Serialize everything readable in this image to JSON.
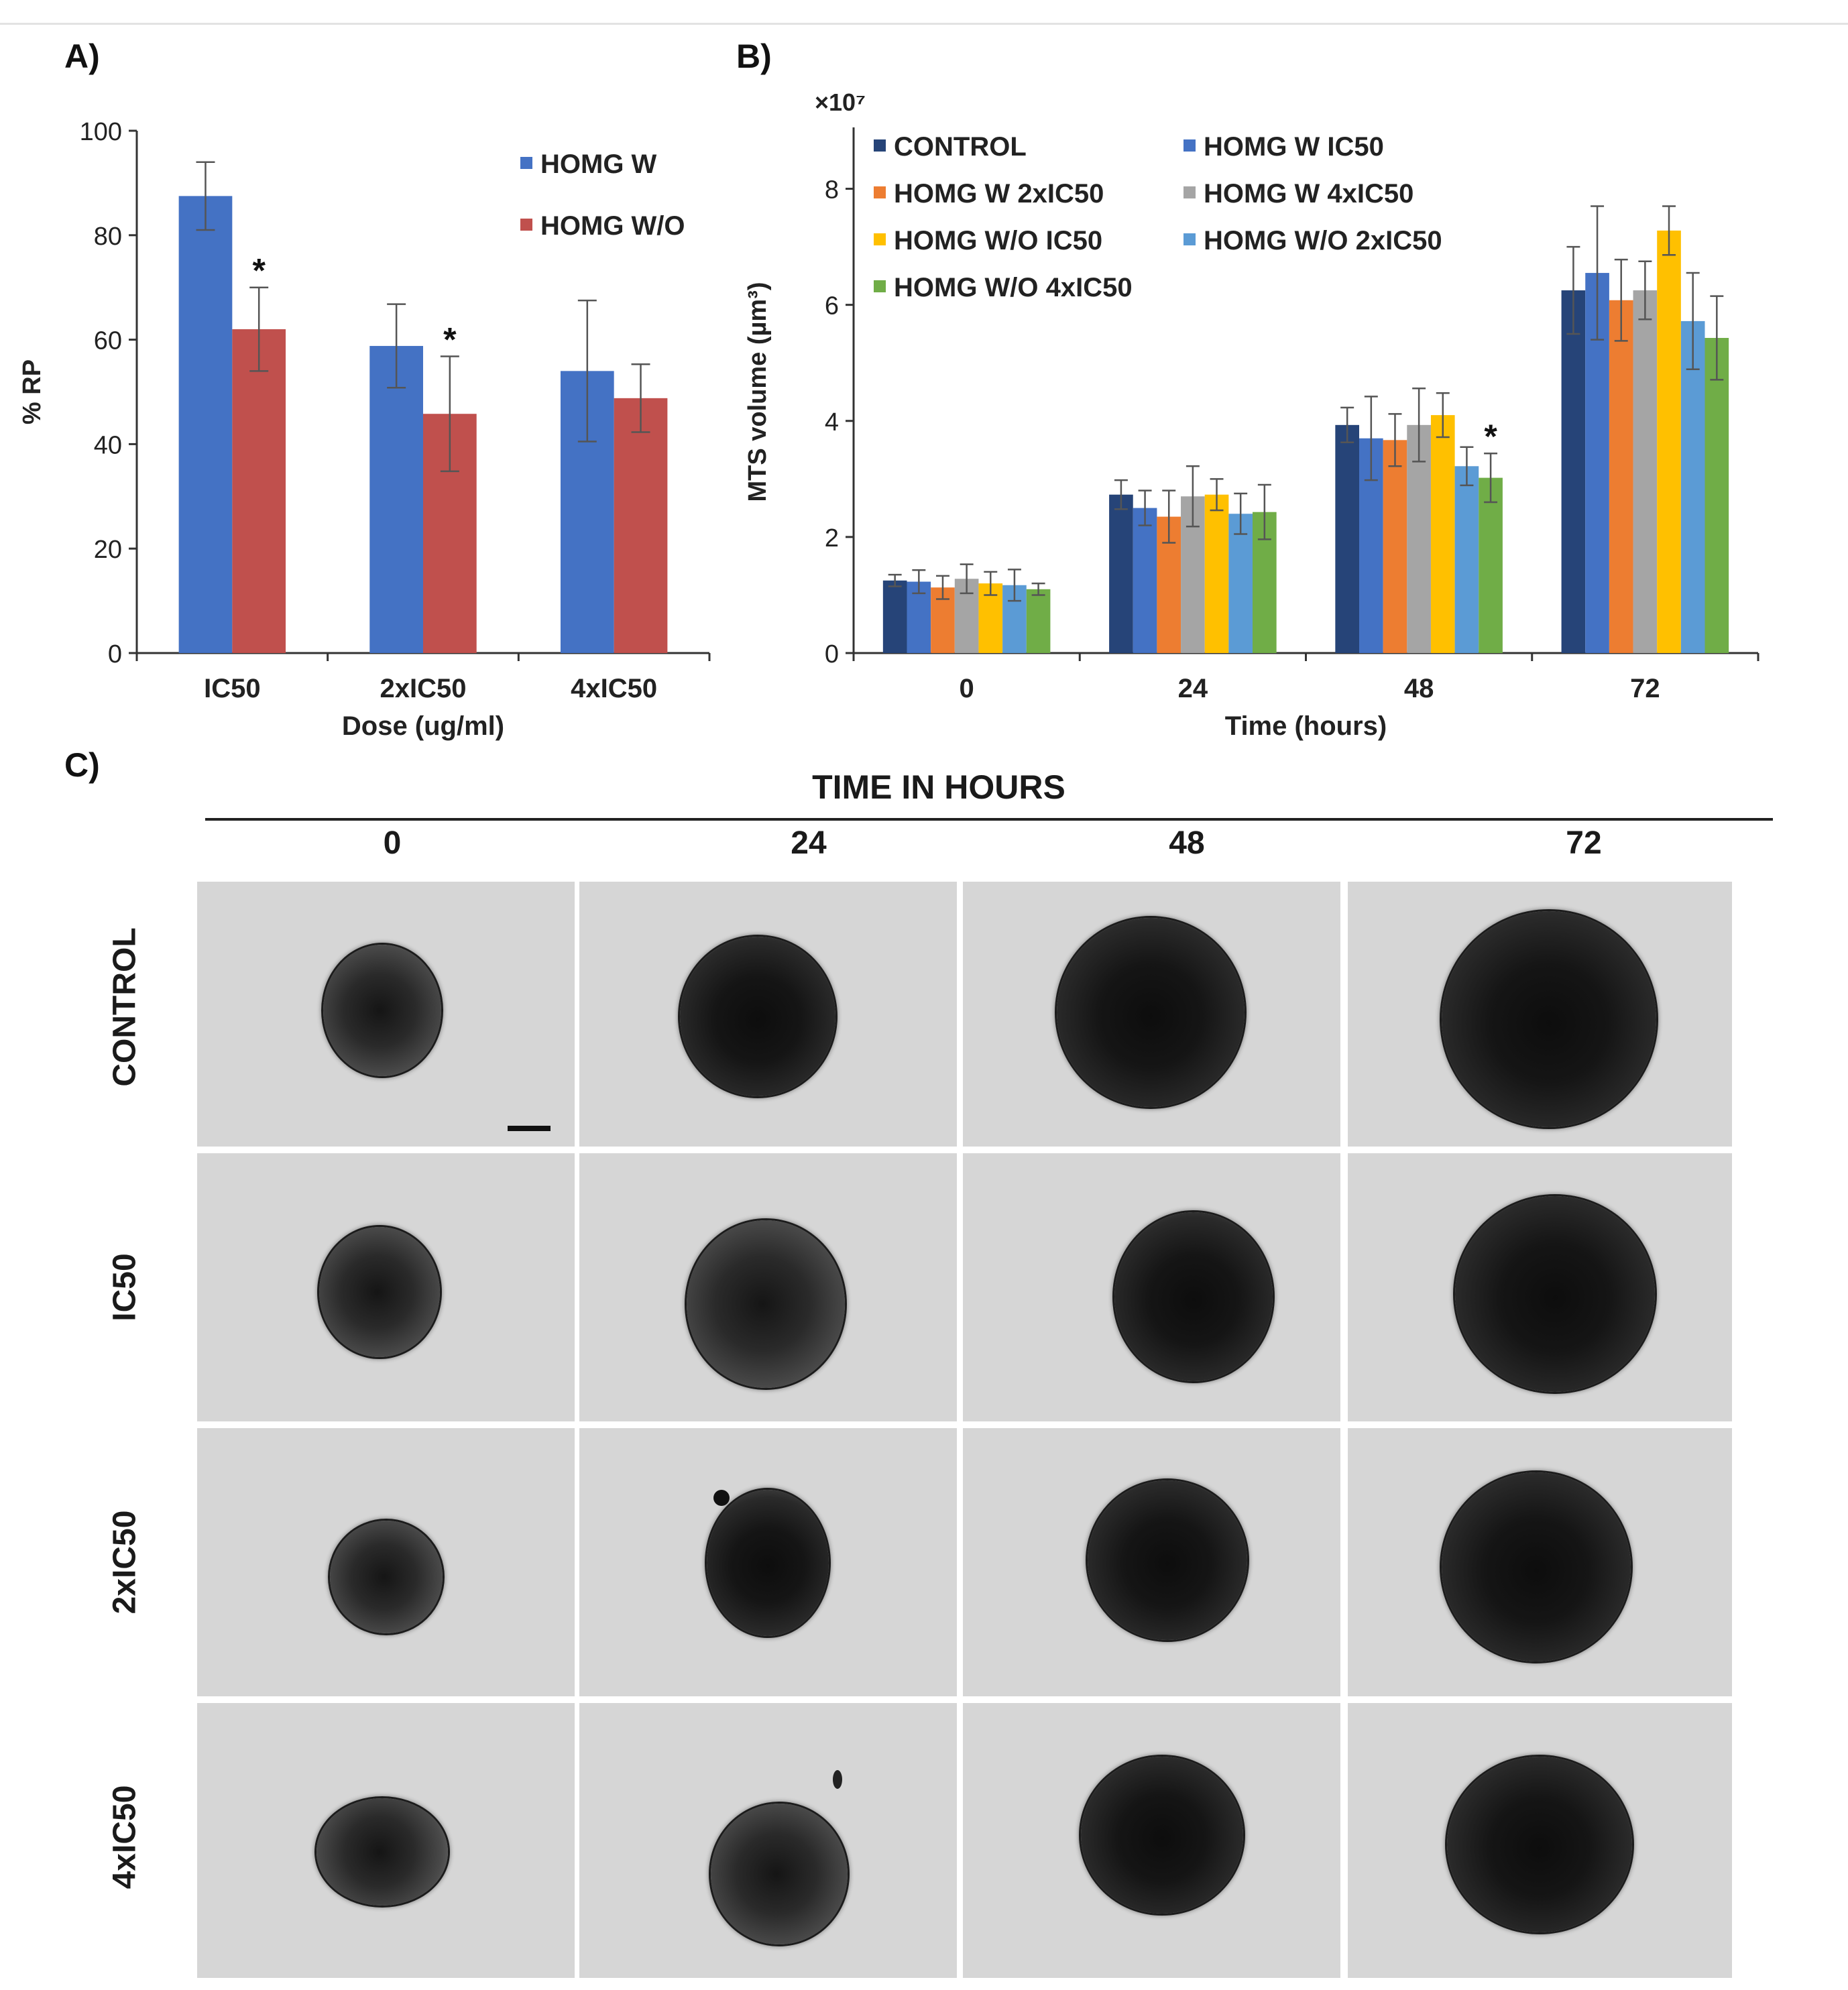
{
  "panel_labels": {
    "a": "A)",
    "b": "B)",
    "c": "C)"
  },
  "chart_data": [
    {
      "type": "bar",
      "panel": "A)",
      "categories": [
        "IC50",
        "2xIC50",
        "4xIC50"
      ],
      "series": [
        {
          "name": "HOMG W",
          "color": "#4472C4",
          "values": [
            87.5,
            58.8,
            54.0
          ],
          "errors": [
            6.5,
            8.0,
            13.5
          ]
        },
        {
          "name": "HOMG W/O",
          "color": "#C0504D",
          "values": [
            62.0,
            45.8,
            48.8
          ],
          "errors": [
            8.0,
            11.0,
            6.5
          ]
        }
      ],
      "significance": [
        {
          "series": "HOMG W/O",
          "category": "IC50",
          "mark": "*"
        },
        {
          "series": "HOMG W/O",
          "category": "2xIC50",
          "mark": "*"
        }
      ],
      "xlabel": "Dose (ug/ml)",
      "ylabel": "% RP",
      "ylim": [
        0,
        100
      ],
      "yticks": [
        "0",
        "20",
        "40",
        "60",
        "80",
        "100"
      ],
      "legend_position": "top-right"
    },
    {
      "type": "bar",
      "panel": "B)",
      "categories": [
        "0",
        "24",
        "48",
        "72"
      ],
      "series": [
        {
          "name": "CONTROL",
          "color": "#264478",
          "values": [
            1.25,
            2.73,
            3.93,
            6.25
          ],
          "errors": [
            0.1,
            0.25,
            0.3,
            0.75
          ]
        },
        {
          "name": "HOMG W IC50",
          "color": "#4472C4",
          "values": [
            1.23,
            2.5,
            3.7,
            6.55
          ],
          "errors": [
            0.2,
            0.3,
            0.72,
            1.15
          ]
        },
        {
          "name": "HOMG W 2xIC50",
          "color": "#ED7D31",
          "values": [
            1.13,
            2.35,
            3.67,
            6.08
          ],
          "errors": [
            0.2,
            0.45,
            0.45,
            0.7
          ]
        },
        {
          "name": "HOMG W 4xIC50",
          "color": "#A5A5A5",
          "values": [
            1.28,
            2.7,
            3.93,
            6.25
          ],
          "errors": [
            0.25,
            0.52,
            0.63,
            0.5
          ]
        },
        {
          "name": "HOMG W/O IC50",
          "color": "#FFC000",
          "values": [
            1.2,
            2.73,
            4.1,
            7.28
          ],
          "errors": [
            0.2,
            0.27,
            0.38,
            0.42
          ]
        },
        {
          "name": "HOMG W/O 2xIC50",
          "color": "#5B9BD5",
          "values": [
            1.17,
            2.4,
            3.22,
            5.72
          ],
          "errors": [
            0.27,
            0.35,
            0.33,
            0.83
          ]
        },
        {
          "name": "HOMG W/O 4xIC50",
          "color": "#70AD47",
          "values": [
            1.1,
            2.43,
            3.02,
            5.43
          ],
          "errors": [
            0.1,
            0.47,
            0.42,
            0.72
          ]
        }
      ],
      "significance": [
        {
          "series": "HOMG W/O 4xIC50",
          "category": "48",
          "mark": "*"
        }
      ],
      "xlabel": "Time (hours)",
      "ylabel": "MTS volume (µm³)",
      "y_multiplier": "×10⁷",
      "ylim": [
        0,
        9
      ],
      "yticks": [
        "0",
        "2",
        "4",
        "6",
        "8"
      ],
      "legend_position": "top-left"
    }
  ],
  "image_grid": {
    "header": "TIME IN HOURS",
    "columns": [
      "0",
      "24",
      "48",
      "72"
    ],
    "rows": [
      "CONTROL",
      "IC50",
      "2xIC50",
      "4xIC50"
    ]
  }
}
